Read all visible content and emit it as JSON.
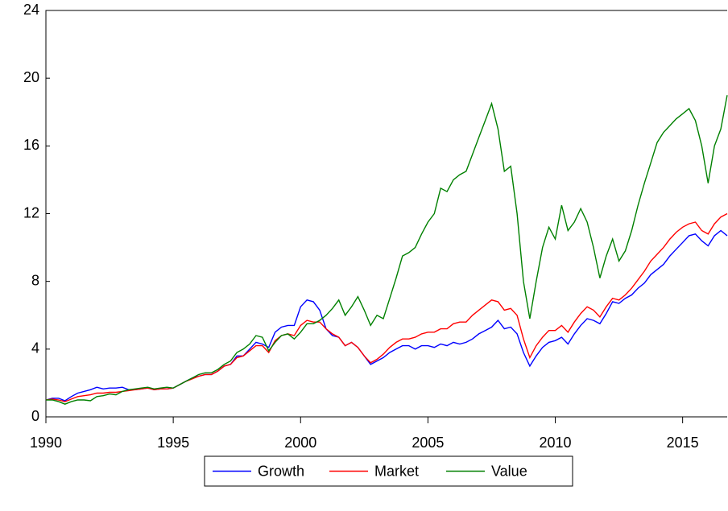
{
  "chart_data": {
    "type": "line",
    "x": [
      1990,
      1990.25,
      1990.5,
      1990.75,
      1991,
      1991.25,
      1991.5,
      1991.75,
      1992,
      1992.25,
      1992.5,
      1992.75,
      1993,
      1993.25,
      1993.5,
      1993.75,
      1994,
      1994.25,
      1994.5,
      1994.75,
      1995,
      1995.25,
      1995.5,
      1995.75,
      1996,
      1996.25,
      1996.5,
      1996.75,
      1997,
      1997.25,
      1997.5,
      1997.75,
      1998,
      1998.25,
      1998.5,
      1998.75,
      1999,
      1999.25,
      1999.5,
      1999.75,
      2000,
      2000.25,
      2000.5,
      2000.75,
      2001,
      2001.25,
      2001.5,
      2001.75,
      2002,
      2002.25,
      2002.5,
      2002.75,
      2003,
      2003.25,
      2003.5,
      2003.75,
      2004,
      2004.25,
      2004.5,
      2004.75,
      2005,
      2005.25,
      2005.5,
      2005.75,
      2006,
      2006.25,
      2006.5,
      2006.75,
      2007,
      2007.25,
      2007.5,
      2007.75,
      2008,
      2008.25,
      2008.5,
      2008.75,
      2009,
      2009.25,
      2009.5,
      2009.75,
      2010,
      2010.25,
      2010.5,
      2010.75,
      2011,
      2011.25,
      2011.5,
      2011.75,
      2012,
      2012.25,
      2012.5,
      2012.75,
      2013,
      2013.25,
      2013.5,
      2013.75,
      2014,
      2014.25,
      2014.5,
      2014.75,
      2015,
      2015.25,
      2015.5,
      2015.75,
      2016,
      2016.25,
      2016.5,
      2016.75
    ],
    "series": [
      {
        "name": "Growth",
        "color": "#0000ff",
        "values": [
          1.0,
          1.1,
          1.1,
          0.95,
          1.2,
          1.4,
          1.5,
          1.6,
          1.75,
          1.65,
          1.7,
          1.7,
          1.75,
          1.6,
          1.6,
          1.65,
          1.7,
          1.6,
          1.65,
          1.65,
          1.7,
          1.9,
          2.1,
          2.3,
          2.4,
          2.5,
          2.5,
          2.7,
          3.0,
          3.1,
          3.6,
          3.6,
          4.0,
          4.4,
          4.3,
          4.1,
          5.0,
          5.3,
          5.4,
          5.4,
          6.5,
          6.9,
          6.8,
          6.3,
          5.2,
          4.8,
          4.7,
          4.2,
          4.4,
          4.1,
          3.6,
          3.1,
          3.3,
          3.5,
          3.8,
          4.0,
          4.2,
          4.2,
          4.0,
          4.2,
          4.2,
          4.1,
          4.3,
          4.2,
          4.4,
          4.3,
          4.4,
          4.6,
          4.9,
          5.1,
          5.3,
          5.7,
          5.2,
          5.3,
          4.9,
          3.8,
          3.0,
          3.6,
          4.1,
          4.4,
          4.5,
          4.7,
          4.3,
          4.9,
          5.4,
          5.8,
          5.7,
          5.5,
          6.1,
          6.8,
          6.7,
          7.0,
          7.2,
          7.6,
          7.9,
          8.4,
          8.7,
          9.0,
          9.5,
          9.9,
          10.3,
          10.7,
          10.8,
          10.4,
          10.1,
          10.7,
          11.0,
          10.7
        ]
      },
      {
        "name": "Market",
        "color": "#ff0000",
        "values": [
          1.0,
          1.05,
          1.0,
          0.9,
          1.05,
          1.2,
          1.25,
          1.3,
          1.4,
          1.4,
          1.45,
          1.45,
          1.5,
          1.55,
          1.6,
          1.65,
          1.7,
          1.6,
          1.65,
          1.65,
          1.7,
          1.9,
          2.1,
          2.25,
          2.4,
          2.5,
          2.5,
          2.7,
          3.0,
          3.1,
          3.5,
          3.6,
          3.9,
          4.2,
          4.2,
          3.8,
          4.5,
          4.8,
          4.9,
          4.8,
          5.4,
          5.7,
          5.6,
          5.6,
          5.2,
          4.9,
          4.7,
          4.2,
          4.4,
          4.1,
          3.6,
          3.2,
          3.4,
          3.7,
          4.1,
          4.4,
          4.6,
          4.6,
          4.7,
          4.9,
          5.0,
          5.0,
          5.2,
          5.2,
          5.5,
          5.6,
          5.6,
          6.0,
          6.3,
          6.6,
          6.9,
          6.8,
          6.3,
          6.4,
          6.0,
          4.6,
          3.5,
          4.2,
          4.7,
          5.1,
          5.1,
          5.4,
          5.0,
          5.6,
          6.1,
          6.5,
          6.3,
          5.9,
          6.5,
          7.0,
          6.9,
          7.2,
          7.6,
          8.1,
          8.6,
          9.2,
          9.6,
          10.0,
          10.5,
          10.9,
          11.2,
          11.4,
          11.5,
          11.0,
          10.8,
          11.4,
          11.8,
          12.0
        ]
      },
      {
        "name": "Value",
        "color": "#008000",
        "values": [
          1.0,
          1.0,
          0.9,
          0.75,
          0.9,
          1.0,
          1.0,
          0.95,
          1.2,
          1.25,
          1.35,
          1.3,
          1.5,
          1.6,
          1.65,
          1.7,
          1.75,
          1.65,
          1.7,
          1.75,
          1.7,
          1.9,
          2.1,
          2.3,
          2.5,
          2.6,
          2.6,
          2.8,
          3.1,
          3.3,
          3.8,
          4.0,
          4.3,
          4.8,
          4.7,
          3.9,
          4.4,
          4.8,
          4.9,
          4.6,
          5.0,
          5.5,
          5.5,
          5.7,
          6.0,
          6.4,
          6.9,
          6.0,
          6.5,
          7.1,
          6.3,
          5.4,
          6.0,
          5.8,
          7.0,
          8.2,
          9.5,
          9.7,
          10.0,
          10.8,
          11.5,
          12.0,
          13.5,
          13.3,
          14.0,
          14.3,
          14.5,
          15.5,
          16.5,
          17.5,
          18.5,
          17.0,
          14.5,
          14.8,
          12.0,
          8.0,
          5.8,
          8.0,
          10.0,
          11.2,
          10.5,
          12.5,
          11.0,
          11.5,
          12.3,
          11.5,
          10.0,
          8.2,
          9.5,
          10.5,
          9.2,
          9.8,
          11.0,
          12.5,
          13.8,
          15.0,
          16.2,
          16.8,
          17.2,
          17.6,
          17.9,
          18.2,
          17.5,
          16.0,
          13.8,
          16.0,
          17.0,
          19.0
        ]
      }
    ],
    "xlim": [
      1990,
      2016.75
    ],
    "xticks": [
      1990,
      1995,
      2000,
      2005,
      2010,
      2015
    ],
    "ylim": [
      0,
      24
    ],
    "yticks": [
      0,
      4,
      8,
      12,
      16,
      20,
      24
    ],
    "legend": "bottom"
  }
}
